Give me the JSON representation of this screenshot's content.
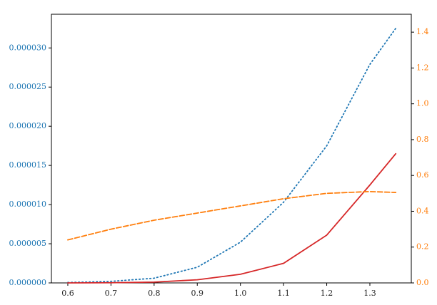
{
  "chart_data": {
    "type": "line",
    "x": [
      0.6,
      0.7,
      0.8,
      0.9,
      1.0,
      1.1,
      1.2,
      1.3,
      1.36
    ],
    "series": [
      {
        "color": "#1f77b4",
        "linestyle": "dotted",
        "axis": "y",
        "values": [
          5e-08,
          2e-07,
          6e-07,
          2e-06,
          5.2e-06,
          1.03e-05,
          1.75e-05,
          2.79e-05,
          3.25e-05
        ]
      },
      {
        "color": "#d62728",
        "linestyle": "solid",
        "axis": "y",
        "values": [
          0,
          2e-08,
          1e-07,
          4e-07,
          1.1e-06,
          2.5e-06,
          6.1e-06,
          1.25e-05,
          1.65e-05
        ]
      },
      {
        "color": "#ff7f0e",
        "linestyle": "dashed",
        "axis": "y2",
        "values": [
          0.24,
          0.3,
          0.35,
          0.39,
          0.43,
          0.47,
          0.5,
          0.51,
          0.505
        ]
      }
    ],
    "xlim": [
      0.562,
      1.396
    ],
    "xticks": [
      0.6,
      0.7,
      0.8,
      0.9,
      {
        "value": 1.0,
        "label": "1.0"
      },
      1.1,
      1.2,
      1.3
    ],
    "ylim": [
      0,
      3.43e-05
    ],
    "yticks": [
      {
        "value": 0,
        "label": "0.000000"
      },
      {
        "value": 5e-06,
        "label": "0.000005"
      },
      {
        "value": 1e-05,
        "label": "0.000010"
      },
      {
        "value": 1.5e-05,
        "label": "0.000015"
      },
      {
        "value": 2e-05,
        "label": "0.000020"
      },
      {
        "value": 2.5e-05,
        "label": "0.000025"
      },
      {
        "value": 3e-05,
        "label": "0.000030"
      }
    ],
    "ytick_color": "#1f77b4",
    "y2lim": [
      0,
      1.5
    ],
    "y2ticks": [
      {
        "value": 0,
        "label": "0.0"
      },
      0.2,
      0.4,
      0.6,
      0.8,
      {
        "value": 1.0,
        "label": "1.0"
      },
      1.2,
      1.4
    ],
    "y2tick_color": "#ff7f0e",
    "grid": false
  }
}
